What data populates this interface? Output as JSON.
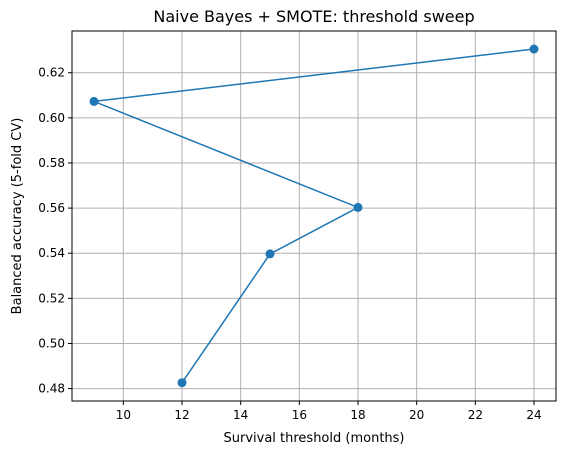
{
  "chart_data": {
    "type": "line",
    "title": "Naive Bayes + SMOTE: threshold sweep",
    "xlabel": "Survival threshold (months)",
    "ylabel": "Balanced accuracy (5-fold CV)",
    "xlim": [
      8.25,
      24.75
    ],
    "ylim": [
      0.4745,
      0.6385
    ],
    "xticks": [
      10,
      12,
      14,
      16,
      18,
      20,
      22,
      24
    ],
    "yticks": [
      0.48,
      0.5,
      0.52,
      0.54,
      0.56,
      0.58,
      0.6,
      0.62
    ],
    "ytick_labels": [
      "0.48",
      "0.50",
      "0.52",
      "0.54",
      "0.56",
      "0.58",
      "0.60",
      "0.62"
    ],
    "grid": true,
    "series": [
      {
        "color": "#1f77b4",
        "marker": "circle",
        "x": [
          24,
          9,
          18,
          15,
          12
        ],
        "y": [
          0.6305,
          0.6073,
          0.5603,
          0.5397,
          0.4826
        ]
      }
    ]
  }
}
